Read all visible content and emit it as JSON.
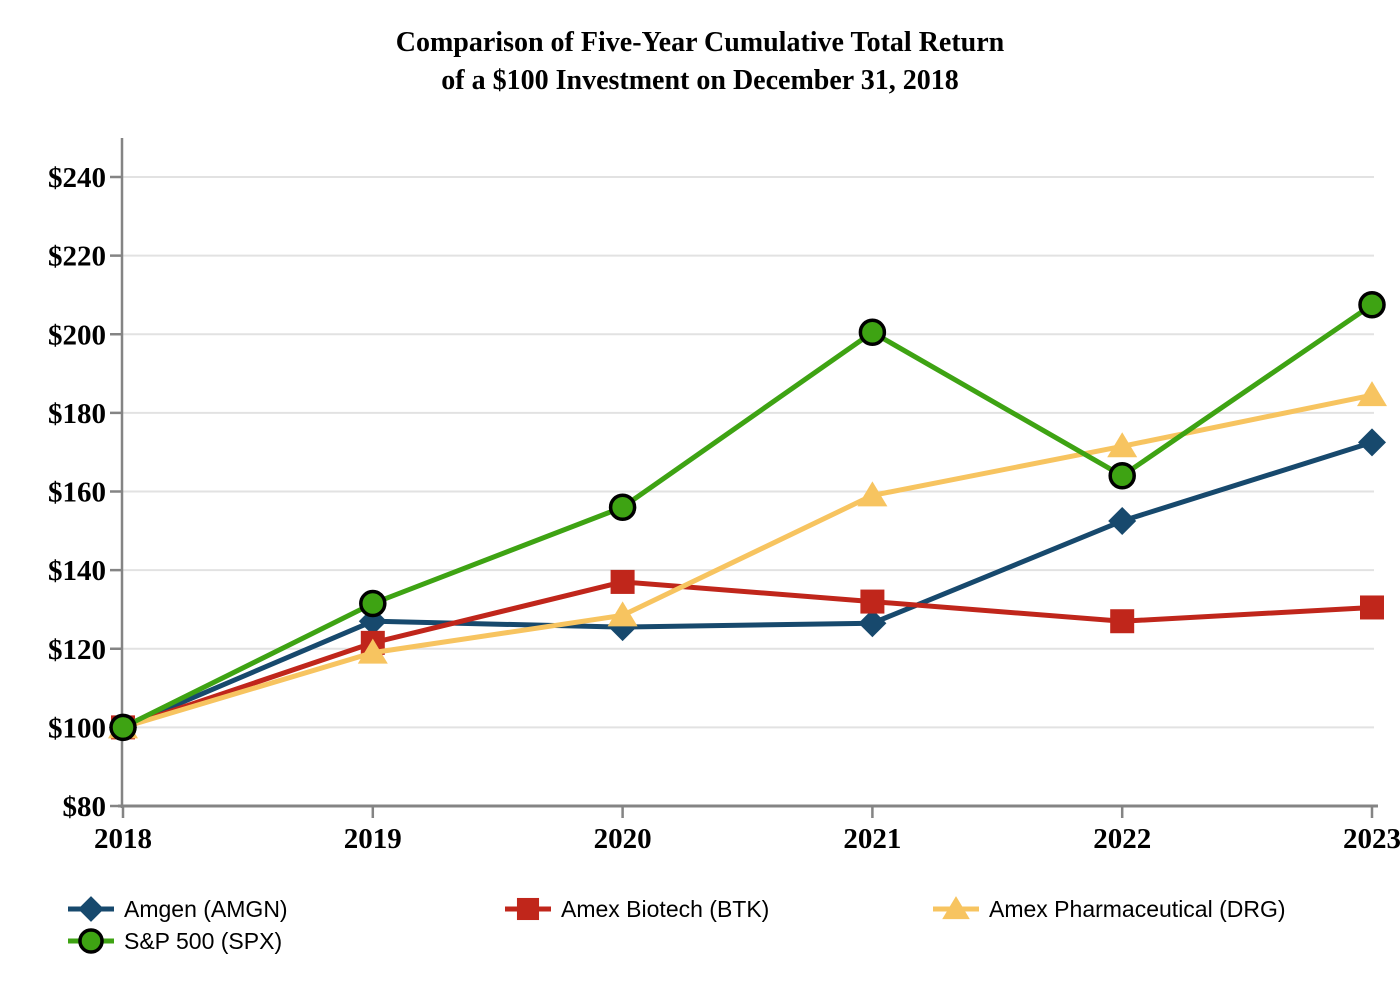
{
  "title": {
    "line1": "Comparison of Five-Year Cumulative Total Return",
    "line2": "of a $100 Investment on December 31, 2018"
  },
  "chart_data": {
    "type": "line",
    "categories": [
      "2018",
      "2019",
      "2020",
      "2021",
      "2022",
      "2023"
    ],
    "series": [
      {
        "name": "Amgen (AMGN)",
        "marker": "diamond",
        "color": "#17496D",
        "values": [
          100,
          127,
          125.5,
          126.5,
          152.5,
          172.5
        ]
      },
      {
        "name": "Amex Biotech (BTK)",
        "marker": "square",
        "color": "#C0261B",
        "values": [
          100,
          121.5,
          137,
          132,
          127,
          130.5
        ]
      },
      {
        "name": "Amex Pharmaceutical (DRG)",
        "marker": "triangle",
        "color": "#F7C460",
        "values": [
          100,
          119,
          128.5,
          159,
          171.5,
          184.5
        ]
      },
      {
        "name": "S&P 500 (SPX)",
        "marker": "circle",
        "color": "#3EA313",
        "marker_outline": "#000000",
        "values": [
          100,
          131.5,
          156,
          200.5,
          164,
          207.5
        ]
      }
    ],
    "ylim": [
      80,
      240
    ],
    "ytick_step": 20,
    "ytick_prefix": "$",
    "xlabel": "",
    "ylabel": "",
    "grid": "horizontal",
    "legend_position": "bottom-left",
    "colors": {
      "axis": "#848484",
      "tick": "#848484",
      "gridline": "#E2E2E2",
      "text": "#000000"
    }
  }
}
